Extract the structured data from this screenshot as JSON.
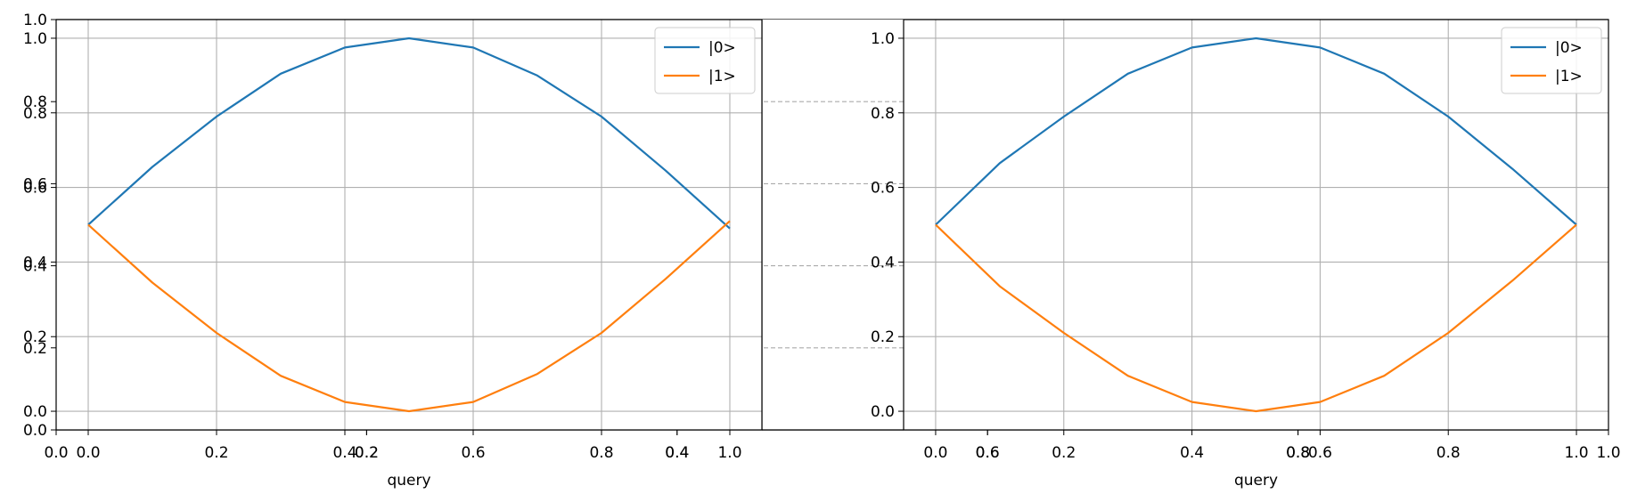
{
  "chart_data": [
    {
      "type": "line",
      "x": [
        0.0,
        0.1,
        0.2,
        0.3,
        0.4,
        0.5,
        0.6,
        0.7,
        0.8,
        0.9,
        1.0
      ],
      "series": [
        {
          "name": "|0>",
          "color": "#1f77b4",
          "values": [
            0.5,
            0.655,
            0.79,
            0.905,
            0.975,
            1.0,
            0.975,
            0.9,
            0.79,
            0.645,
            0.49
          ]
        },
        {
          "name": "|1>",
          "color": "#ff7f0e",
          "values": [
            0.5,
            0.345,
            0.21,
            0.095,
            0.025,
            0.0,
            0.025,
            0.1,
            0.21,
            0.355,
            0.51
          ]
        }
      ],
      "title": "",
      "xlabel": "query",
      "ylabel": "",
      "xlim": [
        -0.05,
        1.05
      ],
      "ylim": [
        -0.05,
        1.05
      ],
      "xticks": [
        "0.0",
        "0.2",
        "0.4",
        "0.6",
        "0.8",
        "1.0"
      ],
      "yticks": [
        "0.0",
        "0.2",
        "0.4",
        "0.6",
        "0.8",
        "1.0"
      ],
      "grid": true,
      "legend": "top-right"
    },
    {
      "type": "line",
      "x": [
        0.0,
        0.1,
        0.2,
        0.3,
        0.4,
        0.5,
        0.6,
        0.7,
        0.8,
        0.9,
        1.0
      ],
      "series": [
        {
          "name": "|0>",
          "color": "#1f77b4",
          "values": [
            0.5,
            0.665,
            0.79,
            0.905,
            0.975,
            1.0,
            0.975,
            0.905,
            0.79,
            0.65,
            0.5
          ]
        },
        {
          "name": "|1>",
          "color": "#ff7f0e",
          "values": [
            0.5,
            0.335,
            0.21,
            0.095,
            0.025,
            0.0,
            0.025,
            0.095,
            0.21,
            0.35,
            0.5
          ]
        }
      ],
      "title": "",
      "xlabel": "query",
      "ylabel": "",
      "xlim": [
        -0.05,
        1.05
      ],
      "ylim": [
        -0.05,
        1.05
      ],
      "xticks": [
        "0.0",
        "0.2",
        "0.4",
        "0.6",
        "0.8",
        "1.0"
      ],
      "yticks": [
        "0.0",
        "0.2",
        "0.4",
        "0.6",
        "0.8",
        "1.0"
      ],
      "grid": true,
      "legend": "top-right"
    }
  ],
  "background_axes": {
    "xticks": [
      "0.0",
      "0.2",
      "0.4",
      "0.6",
      "0.8",
      "1.0"
    ],
    "yticks": [
      "0.0",
      "0.2",
      "0.4",
      "0.6",
      "0.8",
      "1.0"
    ],
    "xlim": [
      0,
      1
    ],
    "ylim": [
      0,
      1
    ]
  },
  "middle_axis": {
    "xticks": [
      "0.2",
      "0.4",
      "0.6",
      "0.8"
    ],
    "ylevels": [
      0.2,
      0.4,
      0.6,
      0.8
    ],
    "xlim": [
      0,
      1
    ],
    "ylim": [
      0,
      1
    ]
  }
}
